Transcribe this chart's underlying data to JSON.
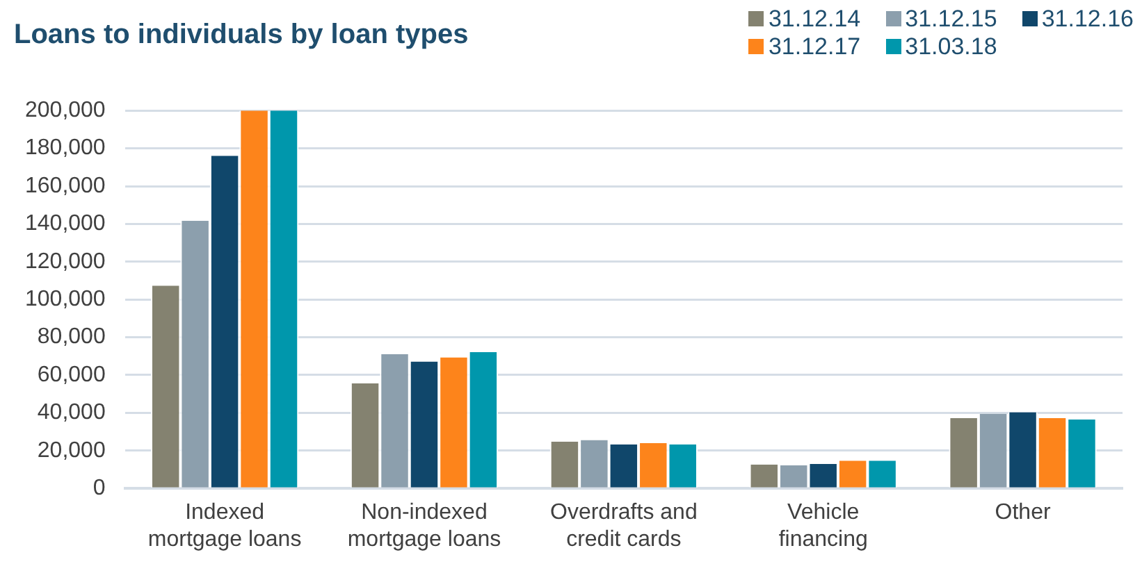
{
  "chart_data": {
    "type": "bar",
    "title": "Loans to individuals by loan types",
    "categories": [
      "Indexed mortgage loans",
      "Non-indexed mortgage loans",
      "Overdrafts and credit cards",
      "Vehicle financing",
      "Other"
    ],
    "series": [
      {
        "name": "31.12.14",
        "color": "#848270",
        "values": [
          107300,
          55600,
          24800,
          12700,
          37200
        ]
      },
      {
        "name": "31.12.15",
        "color": "#8c9fad",
        "values": [
          141700,
          71100,
          25600,
          12200,
          39500
        ]
      },
      {
        "name": "31.12.16",
        "color": "#10476b",
        "values": [
          176100,
          67200,
          23300,
          12900,
          40300
        ]
      },
      {
        "name": "31.12.17",
        "color": "#fd841b",
        "values": [
          200000,
          69400,
          24000,
          14700,
          37200
        ]
      },
      {
        "name": "31.03.18",
        "color": "#0097ac",
        "values": [
          200000,
          72100,
          23300,
          14700,
          36500
        ]
      }
    ],
    "ylim": [
      0,
      200000
    ],
    "yticks": [
      {
        "value": 0,
        "label": "0"
      },
      {
        "value": 20000,
        "label": "20,000"
      },
      {
        "value": 40000,
        "label": "40,000"
      },
      {
        "value": 60000,
        "label": "60,000"
      },
      {
        "value": 80000,
        "label": "80,000"
      },
      {
        "value": 100000,
        "label": "100,000"
      },
      {
        "value": 120000,
        "label": "120,000"
      },
      {
        "value": 140000,
        "label": "140,000"
      },
      {
        "value": 160000,
        "label": "160,000"
      },
      {
        "value": 180000,
        "label": "180,000"
      },
      {
        "value": 200000,
        "label": "200,000"
      }
    ],
    "grid": "y",
    "legend": "top right"
  }
}
